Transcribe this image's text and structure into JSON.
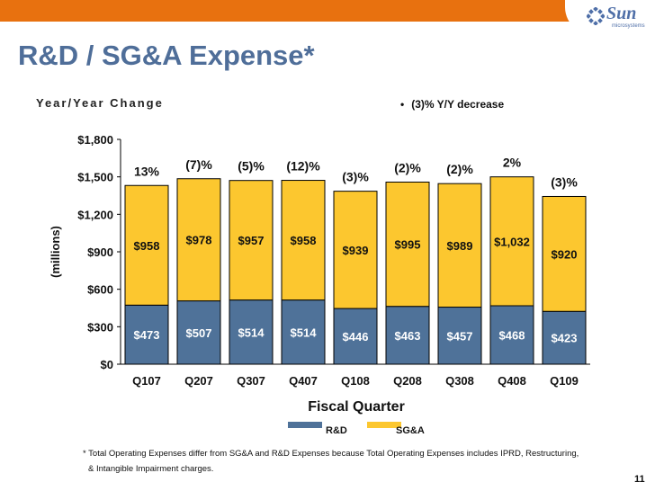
{
  "title": "R&D / SG&A Expense*",
  "subtitle": "Year/Year Change",
  "note": "(3)% Y/Y decrease",
  "footnote_line1": "* Total Operating Expenses differ from SG&A and R&D Expenses because Total Operating Expenses includes IPRD, Restructuring,",
  "footnote_line2": "& Intangible Impairment charges.",
  "page_number": "11",
  "logo": {
    "word": "Sun",
    "sub": "microsystems"
  },
  "colors": {
    "rd": "#4F7299",
    "sga": "#FCC72F",
    "title": "#4F6E99",
    "topbar": "#E8710F"
  },
  "chart_data": {
    "type": "bar",
    "stacked": true,
    "categories": [
      "Q107",
      "Q207",
      "Q307",
      "Q407",
      "Q108",
      "Q208",
      "Q308",
      "Q408",
      "Q109"
    ],
    "series": [
      {
        "name": "R&D",
        "values": [
          473,
          507,
          514,
          514,
          446,
          463,
          457,
          468,
          423
        ],
        "labels": [
          "$473",
          "$507",
          "$514",
          "$514",
          "$446",
          "$463",
          "$457",
          "$468",
          "$423"
        ]
      },
      {
        "name": "SG&A",
        "values": [
          958,
          978,
          957,
          958,
          939,
          995,
          989,
          1032,
          920
        ],
        "labels": [
          "$958",
          "$978",
          "$957",
          "$958",
          "$939",
          "$995",
          "$989",
          "$1,032",
          "$920"
        ]
      }
    ],
    "yoy_change": [
      "13%",
      "(7)%",
      "(5)%",
      "(12)%",
      "(3)%",
      "(2)%",
      "(2)%",
      "2%",
      "(3)%"
    ],
    "xlabel": "Fiscal Quarter",
    "ylabel": "(millions)",
    "ylim": [
      0,
      1800
    ],
    "yticks": [
      0,
      300,
      600,
      900,
      1200,
      1500,
      1800
    ],
    "ytick_labels": [
      "$0",
      "$300",
      "$600",
      "$900",
      "$1,200",
      "$1,500",
      "$1,800"
    ],
    "legend_position": "bottom",
    "grid": false
  }
}
